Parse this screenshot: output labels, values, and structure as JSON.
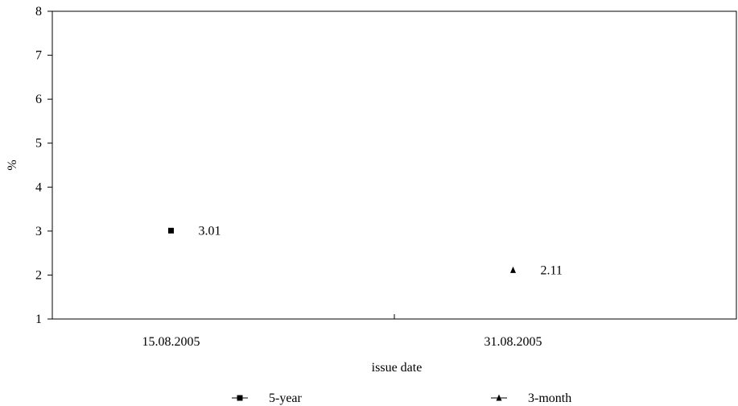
{
  "chart_data": {
    "type": "scatter",
    "title": "",
    "xlabel": "issue date",
    "ylabel": "%",
    "ylim": [
      1,
      8
    ],
    "yticks": [
      "1",
      "2",
      "3",
      "4",
      "5",
      "6",
      "7",
      "8"
    ],
    "categories": [
      "15.08.2005",
      "31.08.2005"
    ],
    "series": [
      {
        "name": "5-year",
        "marker": "square",
        "category": "15.08.2005",
        "value": 3.01,
        "label": "3.01"
      },
      {
        "name": "3-month",
        "marker": "triangle",
        "category": "31.08.2005",
        "value": 2.11,
        "label": "2.11"
      }
    ],
    "grid": false,
    "legend": "bottom",
    "colors": {
      "marker": "#000000",
      "axis": "#000000",
      "background": "#ffffff"
    }
  }
}
